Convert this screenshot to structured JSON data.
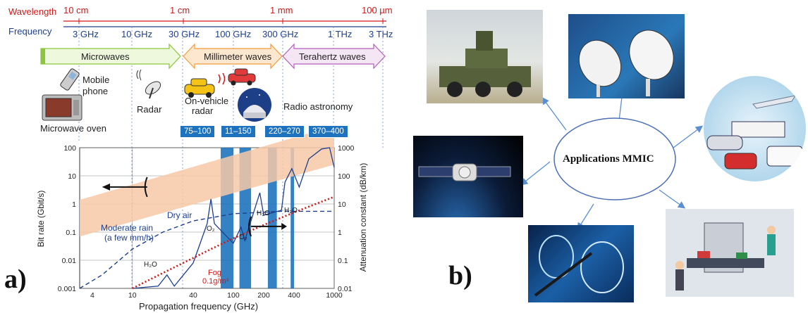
{
  "panel_a": {
    "label": "a)",
    "wavelength_title": "Wavelength",
    "frequency_title": "Frequency",
    "wavelengths": [
      "10 cm",
      "1 cm",
      "1 mm",
      "100 µm"
    ],
    "frequencies": [
      "3 GHz",
      "10 GHz",
      "30 GHz",
      "100 GHz",
      "300 GHz",
      "1 THz",
      "3 THz"
    ],
    "bands": [
      "Microwaves",
      "Millimeter waves",
      "Terahertz waves"
    ],
    "apps": {
      "mobile": "Mobile\nphone",
      "mobile_l1": "Mobile",
      "mobile_l2": "phone",
      "radar": "Radar",
      "vehicle_l1": "On-vehicle",
      "vehicle_l2": "radar",
      "astronomy": "Radio astronomy",
      "oven": "Microwave oven"
    },
    "windows": [
      "75–100",
      "11–150",
      "220–270",
      "370–400"
    ],
    "curve_labels": {
      "moderate_rain_l1": "Moderate rain",
      "moderate_rain_l2": "(a few mm/h)",
      "dry_air": "Dry air",
      "fog_l1": "Fog",
      "fog_l2": "0.1g/m³",
      "h2o_1": "H₂O",
      "h2o_2": "H₂O",
      "h2o_3": "H₂O",
      "o2_1": "O₂",
      "o2_2": "O₂"
    },
    "colors": {
      "wavelength": "#d01818",
      "frequency": "#1d3f8f",
      "window": "#1e73be",
      "bitrate_band": "#f7c9a8",
      "fog": "#d01818"
    }
  },
  "chart_data": {
    "type": "line",
    "xlabel": "Propagation frequency (GHz)",
    "ylabel_left": "Bit rate (Gbit/s)",
    "ylabel_right": "Attenuation constant (dB/km)",
    "x_ticks": [
      "4",
      "10",
      "40",
      "100",
      "200",
      "400",
      "1000"
    ],
    "y_left_ticks": [
      "100",
      "10",
      "1",
      "0.1",
      "0.01",
      "0.001"
    ],
    "y_right_ticks": [
      "1000",
      "100",
      "10",
      "1",
      "0.1",
      "0.01"
    ],
    "xlim": [
      3,
      1000
    ],
    "ylim_left": [
      0.001,
      100
    ],
    "ylim_right": [
      0.01,
      1000
    ],
    "x_scale": "log",
    "y_scale": "log",
    "series": [
      {
        "name": "Moderate rain",
        "x": [
          3,
          5,
          10,
          20,
          40,
          100,
          300,
          1000
        ],
        "y": [
          0.008,
          0.03,
          0.25,
          1.0,
          2.5,
          4.5,
          5.5,
          5.5
        ]
      },
      {
        "name": "Dry air",
        "x": [
          10,
          18,
          22,
          26,
          40,
          55,
          60,
          65,
          100,
          119,
          130,
          183,
          200,
          300,
          325,
          380,
          450,
          560,
          750,
          900,
          1000
        ],
        "y": [
          0.004,
          0.012,
          0.03,
          0.012,
          0.08,
          2,
          15,
          2,
          0.4,
          1.5,
          0.5,
          25,
          4,
          6,
          60,
          180,
          40,
          400,
          900,
          1000,
          200
        ]
      },
      {
        "name": "Fog",
        "x": [
          10,
          20,
          40,
          60,
          100,
          200,
          400,
          1000
        ],
        "y": [
          0.01,
          0.035,
          0.12,
          0.25,
          0.6,
          1.8,
          5,
          18
        ]
      }
    ]
  },
  "panel_b": {
    "label": "b)",
    "center": "Applications MMIC"
  }
}
